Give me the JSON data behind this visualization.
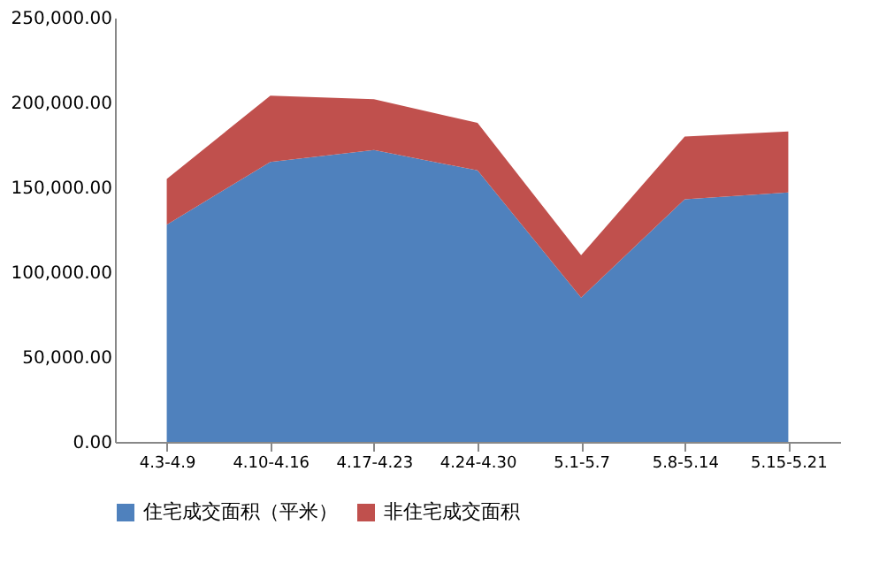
{
  "chart_data": {
    "type": "area",
    "stacked": true,
    "categories": [
      "4.3-4.9",
      "4.10-4.16",
      "4.17-4.23",
      "4.24-4.30",
      "5.1-5.7",
      "5.8-5.14",
      "5.15-5.21"
    ],
    "series": [
      {
        "name": "住宅成交面积（平米）",
        "color": "#4f81bd",
        "values": [
          128000,
          165000,
          172000,
          160000,
          85000,
          143000,
          147000
        ]
      },
      {
        "name": "非住宅成交面积",
        "color": "#c0504d",
        "values": [
          27000,
          39000,
          30000,
          28000,
          25000,
          37000,
          36000
        ]
      }
    ],
    "ylim": [
      0,
      250000
    ],
    "yticks": [
      {
        "value": 0,
        "label": "0.00"
      },
      {
        "value": 50000,
        "label": "50,000.00"
      },
      {
        "value": 100000,
        "label": "100,000.00"
      },
      {
        "value": 150000,
        "label": "150,000.00"
      },
      {
        "value": 200000,
        "label": "200,000.00"
      },
      {
        "value": 250000,
        "label": "250,000.00"
      }
    ],
    "grid": false,
    "legend": "bottom"
  }
}
